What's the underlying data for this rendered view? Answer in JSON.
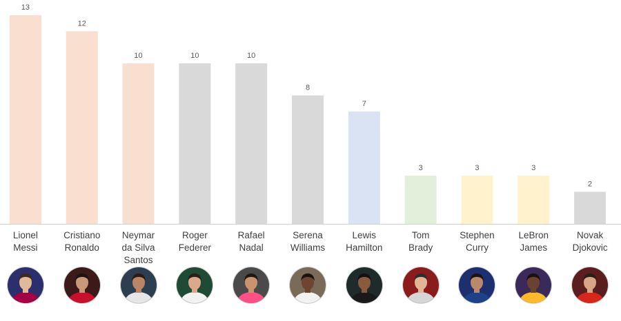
{
  "chart_data": {
    "type": "bar",
    "title": "",
    "xlabel": "",
    "ylabel": "",
    "ylim": [
      0,
      13
    ],
    "grid": false,
    "categories": [
      [
        "Lionel",
        "Messi"
      ],
      [
        "Cristiano",
        "Ronaldo"
      ],
      [
        "Neymar",
        "da Silva",
        "Santos"
      ],
      [
        "Roger",
        "Federer"
      ],
      [
        "Rafael",
        "Nadal"
      ],
      [
        "Serena",
        "Williams"
      ],
      [
        "Lewis",
        "Hamilton"
      ],
      [
        "Tom",
        "Brady"
      ],
      [
        "Stephen",
        "Curry"
      ],
      [
        "LeBron",
        "James"
      ],
      [
        "Novak",
        "Djokovic"
      ]
    ],
    "values": [
      13,
      12,
      10,
      10,
      10,
      8,
      7,
      3,
      3,
      3,
      2
    ],
    "bar_colors": [
      "#f9dfcf",
      "#f9dfcf",
      "#f9dfcf",
      "#d9d9d9",
      "#d9d9d9",
      "#d9d9d9",
      "#dae3f3",
      "#e2efda",
      "#fff2cc",
      "#fff2cc",
      "#d9d9d9"
    ]
  },
  "avatars": [
    {
      "icon": "messi-photo-icon",
      "bg": "#2b2f6b",
      "shirt": "#a50044",
      "skin": "#e0b89a",
      "hair": "#3b2a20"
    },
    {
      "icon": "ronaldo-photo-icon",
      "bg": "#3d1a1a",
      "shirt": "#c8102e",
      "skin": "#c99878",
      "hair": "#1c1410"
    },
    {
      "icon": "neymar-photo-icon",
      "bg": "#2c3e50",
      "shirt": "#e6e6e6",
      "skin": "#b98565",
      "hair": "#2a1c12"
    },
    {
      "icon": "federer-photo-icon",
      "bg": "#1f4a36",
      "shirt": "#f2f2f2",
      "skin": "#d9a98a",
      "hair": "#2a1e16"
    },
    {
      "icon": "nadal-photo-icon",
      "bg": "#4a4a4a",
      "shirt": "#ff4f87",
      "skin": "#c9936e",
      "hair": "#1e1712"
    },
    {
      "icon": "serena-photo-icon",
      "bg": "#7a6a58",
      "shirt": "#f2f2f2",
      "skin": "#6e4530",
      "hair": "#1a120c"
    },
    {
      "icon": "hamilton-photo-icon",
      "bg": "#1f2b2b",
      "shirt": "#1a1a1a",
      "skin": "#8a5a3c",
      "hair": "#111111"
    },
    {
      "icon": "brady-photo-icon",
      "bg": "#8a1c1c",
      "shirt": "#d6d6d6",
      "skin": "#e1b595",
      "hair": "#2e2e2e"
    },
    {
      "icon": "curry-photo-icon",
      "bg": "#1d2f6f",
      "shirt": "#1d428a",
      "skin": "#b8896a",
      "hair": "#1c1410"
    },
    {
      "icon": "lebron-photo-icon",
      "bg": "#3a2a5a",
      "shirt": "#fdb927",
      "skin": "#6a4230",
      "hair": "#1a120c"
    },
    {
      "icon": "djokovic-photo-icon",
      "bg": "#5a1e1e",
      "shirt": "#d9261c",
      "skin": "#d8a585",
      "hair": "#2a1e16"
    }
  ]
}
